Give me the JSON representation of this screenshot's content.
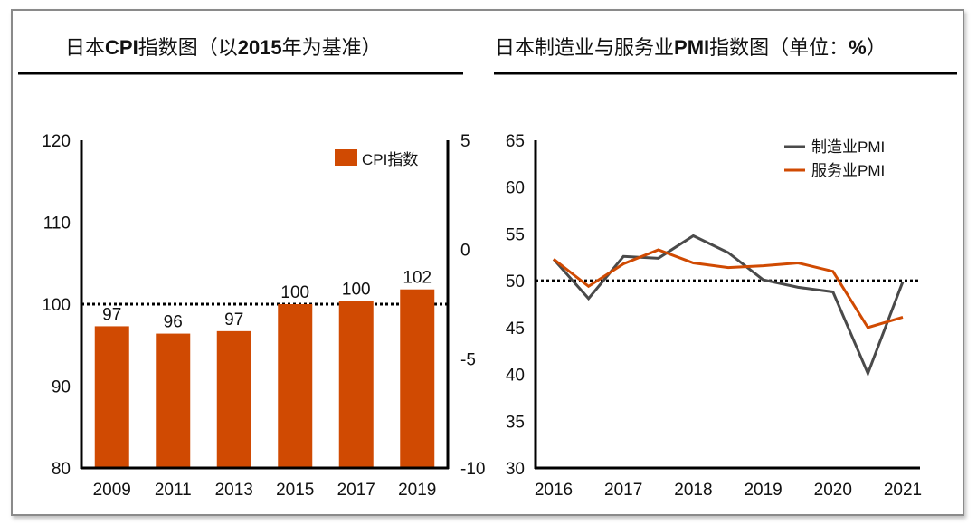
{
  "colors": {
    "bar": "#D04A02",
    "manufacturing": "#4a4a4a",
    "services": "#D04A02",
    "axis": "#000000"
  },
  "chart_data": [
    {
      "type": "bar",
      "title": "日本CPI指数图（以2015年为基准）",
      "title_parts": [
        "日本",
        "CPI",
        "指数图（以",
        "2015",
        "年为基准）"
      ],
      "categories": [
        "2009",
        "2011",
        "2013",
        "2015",
        "2017",
        "2019"
      ],
      "series": [
        {
          "name": "CPI指数",
          "values": [
            97.3,
            96.4,
            96.7,
            100.0,
            100.4,
            101.8
          ],
          "data_labels": [
            "97",
            "96",
            "97",
            "100",
            "100",
            "102"
          ]
        }
      ],
      "ylim": [
        80,
        120
      ],
      "yticks": [
        80,
        90,
        100,
        110,
        120
      ],
      "y2lim": [
        -10,
        5
      ],
      "y2ticks": [
        -10,
        -5,
        0,
        5
      ],
      "reference_line": 100,
      "legend": {
        "entries": [
          "CPI指数"
        ],
        "placement": "top-right"
      },
      "grid": false,
      "xlabel": "",
      "ylabel": ""
    },
    {
      "type": "line",
      "title": "日本制造业与服务业PMI指数图（单位：%）",
      "title_parts": [
        "日本制造业与服务业",
        "PMI",
        "指数图（单位：",
        "%",
        "）"
      ],
      "x": [
        2016.0,
        2016.5,
        2017.0,
        2017.5,
        2018.0,
        2018.5,
        2019.0,
        2019.5,
        2020.0,
        2020.5,
        2021.0
      ],
      "xticks": [
        "2016",
        "2017",
        "2018",
        "2019",
        "2020",
        "2021"
      ],
      "series": [
        {
          "name": "制造业PMI",
          "values": [
            52.3,
            48.1,
            52.6,
            52.4,
            54.8,
            53.0,
            50.1,
            49.3,
            48.8,
            40.1,
            49.9
          ]
        },
        {
          "name": "服务业PMI",
          "values": [
            52.3,
            49.4,
            51.8,
            53.3,
            51.9,
            51.4,
            51.6,
            51.9,
            51.0,
            45.0,
            46.1
          ]
        }
      ],
      "ylim": [
        30,
        65
      ],
      "yticks": [
        30,
        35,
        40,
        45,
        50,
        55,
        60,
        65
      ],
      "reference_line": 50,
      "legend": {
        "entries": [
          "制造业PMI",
          "服务业PMI"
        ],
        "placement": "top-right"
      },
      "grid": false,
      "xlabel": "",
      "ylabel": ""
    }
  ]
}
